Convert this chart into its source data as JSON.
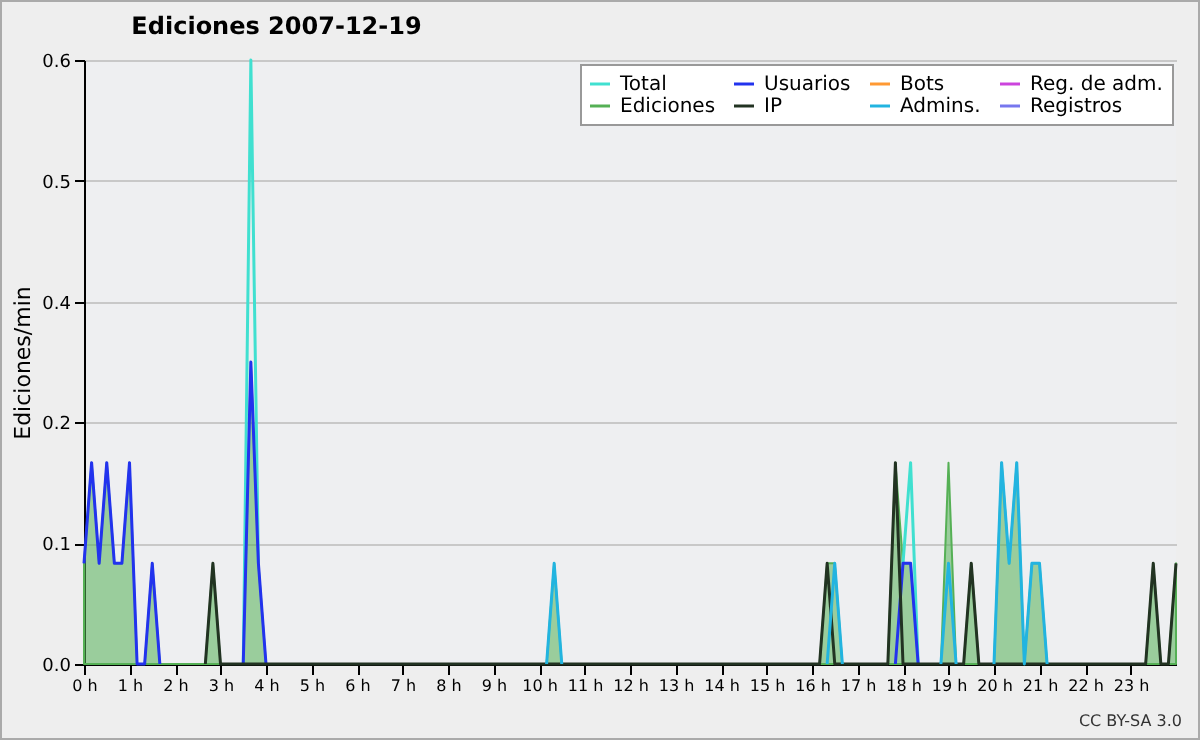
{
  "chart_data": {
    "type": "line",
    "title": "Ediciones  2007-12-19",
    "ylabel": "Ediciones/min",
    "annotations": [
      "CC BY-SA 3.0"
    ],
    "xlim": [
      0,
      24
    ],
    "xticks": [
      {
        "value": 0,
        "label": "0 h"
      },
      {
        "value": 1,
        "label": "1 h"
      },
      {
        "value": 2,
        "label": "2 h"
      },
      {
        "value": 3,
        "label": "3 h"
      },
      {
        "value": 4,
        "label": "4 h"
      },
      {
        "value": 5,
        "label": "5 h"
      },
      {
        "value": 6,
        "label": "6 h"
      },
      {
        "value": 7,
        "label": "7 h"
      },
      {
        "value": 8,
        "label": "8 h"
      },
      {
        "value": 9,
        "label": "9 h"
      },
      {
        "value": 10,
        "label": "10 h"
      },
      {
        "value": 11,
        "label": "11 h"
      },
      {
        "value": 12,
        "label": "12 h"
      },
      {
        "value": 13,
        "label": "13 h"
      },
      {
        "value": 14,
        "label": "14 h"
      },
      {
        "value": 15,
        "label": "15 h"
      },
      {
        "value": 16,
        "label": "16 h"
      },
      {
        "value": 17,
        "label": "17 h"
      },
      {
        "value": 18,
        "label": "18 h"
      },
      {
        "value": 19,
        "label": "19 h"
      },
      {
        "value": 20,
        "label": "20 h"
      },
      {
        "value": 21,
        "label": "21 h"
      },
      {
        "value": 22,
        "label": "22 h"
      },
      {
        "value": 23,
        "label": "23 h"
      }
    ],
    "ylim": [
      0,
      0.6
    ],
    "yticks": [
      {
        "value": 0,
        "label": "0.0"
      },
      {
        "value": 0.12,
        "label": "0.1"
      },
      {
        "value": 0.24,
        "label": "0.2"
      },
      {
        "value": 0.36,
        "label": "0.4"
      },
      {
        "value": 0.48,
        "label": "0.5"
      },
      {
        "value": 0.6,
        "label": "0.6"
      }
    ],
    "grid": "y",
    "legend": "top right",
    "series": [
      {
        "name": "Total",
        "color": "#40e0d0",
        "x": [
          3.5,
          3.667,
          3.833,
          11,
          18.0,
          18.167,
          18.333
        ],
        "values": [
          0,
          0.6,
          0.1,
          null,
          0.1,
          0.2,
          0
        ]
      },
      {
        "name": "Ediciones",
        "type": "area",
        "color": "#55b055",
        "x": [
          0,
          0.167,
          0.333,
          0.5,
          0.667,
          0.833,
          1.0,
          1.167,
          1.333,
          1.5,
          1.667,
          2.667,
          2.833,
          3.0,
          3.5,
          3.667,
          3.833,
          4.0,
          10.167,
          10.333,
          10.5,
          16.167,
          16.333,
          16.5,
          16.667,
          17.667,
          17.833,
          18.0,
          18.167,
          18.333,
          18.833,
          19.0,
          19.167,
          19.333,
          19.5,
          19.667,
          20.0,
          20.167,
          20.333,
          20.5,
          20.667,
          20.833,
          21.0,
          21.167,
          23.333,
          23.5,
          23.667,
          23.833,
          24.0
        ],
        "values": [
          0.1,
          0.2,
          0.1,
          0.2,
          0.1,
          0.1,
          0.2,
          0,
          0,
          0.1,
          0,
          0,
          0.1,
          0,
          0,
          0.3,
          0.1,
          0,
          0,
          0.1,
          0,
          0,
          0.1,
          0.1,
          0,
          0,
          0.2,
          0.1,
          0.1,
          0,
          0,
          0.2,
          0,
          0,
          0.1,
          0,
          0,
          0.2,
          0.1,
          0.2,
          0,
          0.1,
          0.1,
          0,
          0,
          0.1,
          0,
          0,
          0.1
        ]
      },
      {
        "name": "Usuarios",
        "color": "#2233ee",
        "x": [
          0,
          0.167,
          0.333,
          0.5,
          0.667,
          0.833,
          1.0,
          1.167,
          1.333,
          1.5,
          1.667,
          2.5,
          3.5,
          3.667,
          3.833,
          4.0,
          11,
          17.833,
          18.0,
          18.167,
          18.333
        ],
        "values": [
          0.1,
          0.2,
          0.1,
          0.2,
          0.1,
          0.1,
          0.2,
          0,
          0,
          0.1,
          0,
          null,
          0,
          0.3,
          0.1,
          0,
          null,
          0,
          0.1,
          0.1,
          0
        ]
      },
      {
        "name": "IP",
        "color": "#223322",
        "x": [
          2.667,
          2.833,
          3.0,
          16.167,
          16.333,
          16.5,
          17.667,
          17.833,
          18.0,
          19.333,
          19.5,
          19.667,
          23.333,
          23.5,
          23.667,
          23.833,
          24.0
        ],
        "values": [
          0,
          0.1,
          0,
          0,
          0.1,
          0,
          0,
          0.2,
          0,
          0,
          0.1,
          0,
          0,
          0.1,
          0,
          0,
          0.1
        ]
      },
      {
        "name": "Bots",
        "color": "#ff9933"
      },
      {
        "name": "Admins.",
        "color": "#22b4e0",
        "x": [
          10.167,
          10.333,
          10.5,
          12,
          16.333,
          16.5,
          16.667,
          17,
          18.833,
          19.0,
          19.167,
          19.5,
          20.0,
          20.167,
          20.333,
          20.5,
          20.667,
          20.833,
          21.0,
          21.167
        ],
        "values": [
          0,
          0.1,
          0,
          null,
          0,
          0.1,
          0,
          null,
          0,
          0.1,
          0,
          null,
          0,
          0.2,
          0.1,
          0.2,
          0,
          0.1,
          0.1,
          0
        ]
      },
      {
        "name": "Reg. de adm.",
        "color": "#cc44dd"
      },
      {
        "name": "Registros",
        "color": "#7777ee"
      }
    ]
  }
}
